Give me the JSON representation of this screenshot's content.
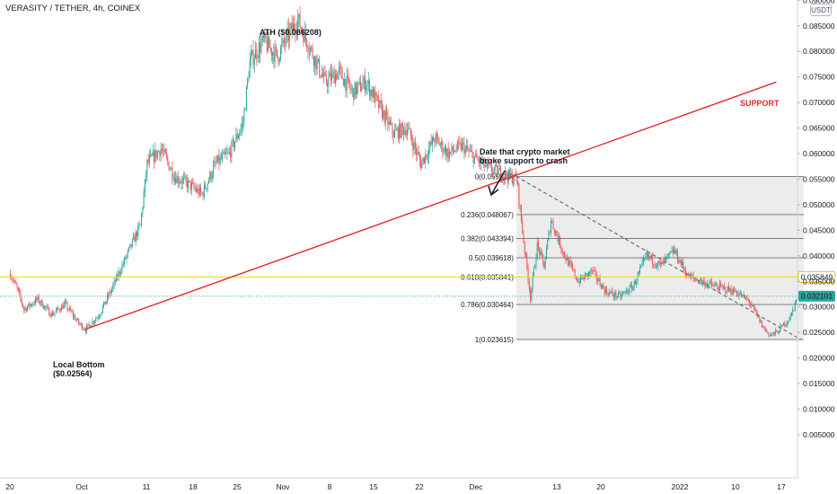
{
  "header": {
    "title": "VERASITY / TETHER, 4h, COINEX",
    "currency": "USDT"
  },
  "colors": {
    "up": "#26a69a",
    "down": "#ef5350",
    "support_line": "#e8262b",
    "level_line": "#f5e000",
    "last_price": "#26a69a",
    "fib_line": "#787b86",
    "fib_fill": "#ececec"
  },
  "chart_data": {
    "type": "candlestick",
    "y_axis": {
      "range": [
        0.0,
        0.093
      ],
      "ticks": [
        "0.005000",
        "0.010000",
        "0.015000",
        "0.020000",
        "0.025000",
        "0.030000",
        "0.035000",
        "0.040000",
        "0.045000",
        "0.050000",
        "0.055000",
        "0.060000",
        "0.065000",
        "0.070000",
        "0.075000",
        "0.080000",
        "0.085000",
        "0.090000"
      ]
    },
    "x_axis": {
      "ticks": [
        "20",
        "Oct",
        "11",
        "18",
        "25",
        "Nov",
        "8",
        "15",
        "22",
        "Dec",
        "13",
        "20",
        "2022",
        "10",
        "17"
      ]
    },
    "price_path": [
      [
        "2021-09-20",
        0.0365
      ],
      [
        "2021-09-21",
        0.0335
      ],
      [
        "2021-09-22",
        0.0295
      ],
      [
        "2021-09-24",
        0.0315
      ],
      [
        "2021-09-26",
        0.0285
      ],
      [
        "2021-09-28",
        0.0305
      ],
      [
        "2021-09-30",
        0.0268
      ],
      [
        "2021-10-01",
        0.0256
      ],
      [
        "2021-10-03",
        0.0285
      ],
      [
        "2021-10-05",
        0.034
      ],
      [
        "2021-10-07",
        0.04
      ],
      [
        "2021-10-09",
        0.046
      ],
      [
        "2021-10-10",
        0.058
      ],
      [
        "2021-10-12",
        0.061
      ],
      [
        "2021-10-14",
        0.0555
      ],
      [
        "2021-10-16",
        0.054
      ],
      [
        "2021-10-18",
        0.052
      ],
      [
        "2021-10-20",
        0.058
      ],
      [
        "2021-10-22",
        0.06
      ],
      [
        "2021-10-24",
        0.066
      ],
      [
        "2021-10-25",
        0.078
      ],
      [
        "2021-10-27",
        0.082
      ],
      [
        "2021-10-29",
        0.079
      ],
      [
        "2021-10-31",
        0.084
      ],
      [
        "2021-11-01",
        0.0862
      ],
      [
        "2021-11-03",
        0.08
      ],
      [
        "2021-11-05",
        0.074
      ],
      [
        "2021-11-07",
        0.076
      ],
      [
        "2021-11-09",
        0.072
      ],
      [
        "2021-11-11",
        0.074
      ],
      [
        "2021-11-13",
        0.069
      ],
      [
        "2021-11-15",
        0.064
      ],
      [
        "2021-11-17",
        0.065
      ],
      [
        "2021-11-19",
        0.058
      ],
      [
        "2021-11-21",
        0.063
      ],
      [
        "2021-11-23",
        0.06
      ],
      [
        "2021-11-25",
        0.0615
      ],
      [
        "2021-11-27",
        0.059
      ],
      [
        "2021-11-29",
        0.057
      ],
      [
        "2021-12-01",
        0.056
      ],
      [
        "2021-12-03",
        0.055
      ],
      [
        "2021-12-04",
        0.043
      ],
      [
        "2021-12-05",
        0.032
      ],
      [
        "2021-12-06",
        0.042
      ],
      [
        "2021-12-07",
        0.038
      ],
      [
        "2021-12-08",
        0.047
      ],
      [
        "2021-12-10",
        0.04
      ],
      [
        "2021-12-12",
        0.035
      ],
      [
        "2021-12-14",
        0.037
      ],
      [
        "2021-12-16",
        0.033
      ],
      [
        "2021-12-18",
        0.032
      ],
      [
        "2021-12-20",
        0.034
      ],
      [
        "2021-12-22",
        0.04
      ],
      [
        "2021-12-24",
        0.038
      ],
      [
        "2021-12-26",
        0.041
      ],
      [
        "2021-12-28",
        0.036
      ],
      [
        "2022-01-01",
        0.034
      ],
      [
        "2022-01-04",
        0.033
      ],
      [
        "2022-01-06",
        0.031
      ],
      [
        "2022-01-08",
        0.026
      ],
      [
        "2022-01-09",
        0.0245
      ],
      [
        "2022-01-10",
        0.025
      ],
      [
        "2022-01-12",
        0.028
      ],
      [
        "2022-01-13",
        0.0321
      ]
    ],
    "horizontal_level": {
      "price": 0.035849,
      "label": "0.035849"
    },
    "last_price": {
      "price": 0.032101,
      "label": "0.032101"
    },
    "fibonacci": {
      "levels": [
        {
          "ratio": 0,
          "price": 0.05552,
          "label": "0(0.055520)"
        },
        {
          "ratio": 0.236,
          "price": 0.048067,
          "label": "0.236(0.048067)"
        },
        {
          "ratio": 0.382,
          "price": 0.043394,
          "label": "0.382(0.043394)"
        },
        {
          "ratio": 0.5,
          "price": 0.039618,
          "label": "0.5(0.039618)"
        },
        {
          "ratio": 0.618,
          "price": 0.035841,
          "label": "0.618(0.035841)"
        },
        {
          "ratio": 0.786,
          "price": 0.030464,
          "label": "0.786(0.030464)"
        },
        {
          "ratio": 1,
          "price": 0.023615,
          "label": "1(0.023615)"
        }
      ]
    },
    "support_line": {
      "from": [
        "2021-10-01",
        0.0256
      ],
      "to": [
        "2022-01-10",
        0.074
      ],
      "label": "SUPPORT"
    },
    "annotations": [
      {
        "text": [
          "ATH ($0.086208)"
        ]
      },
      {
        "text": [
          "Local Bottom",
          "($0.02564)"
        ]
      },
      {
        "text": [
          "Date that crypto market",
          "broke support to crash"
        ]
      }
    ]
  }
}
